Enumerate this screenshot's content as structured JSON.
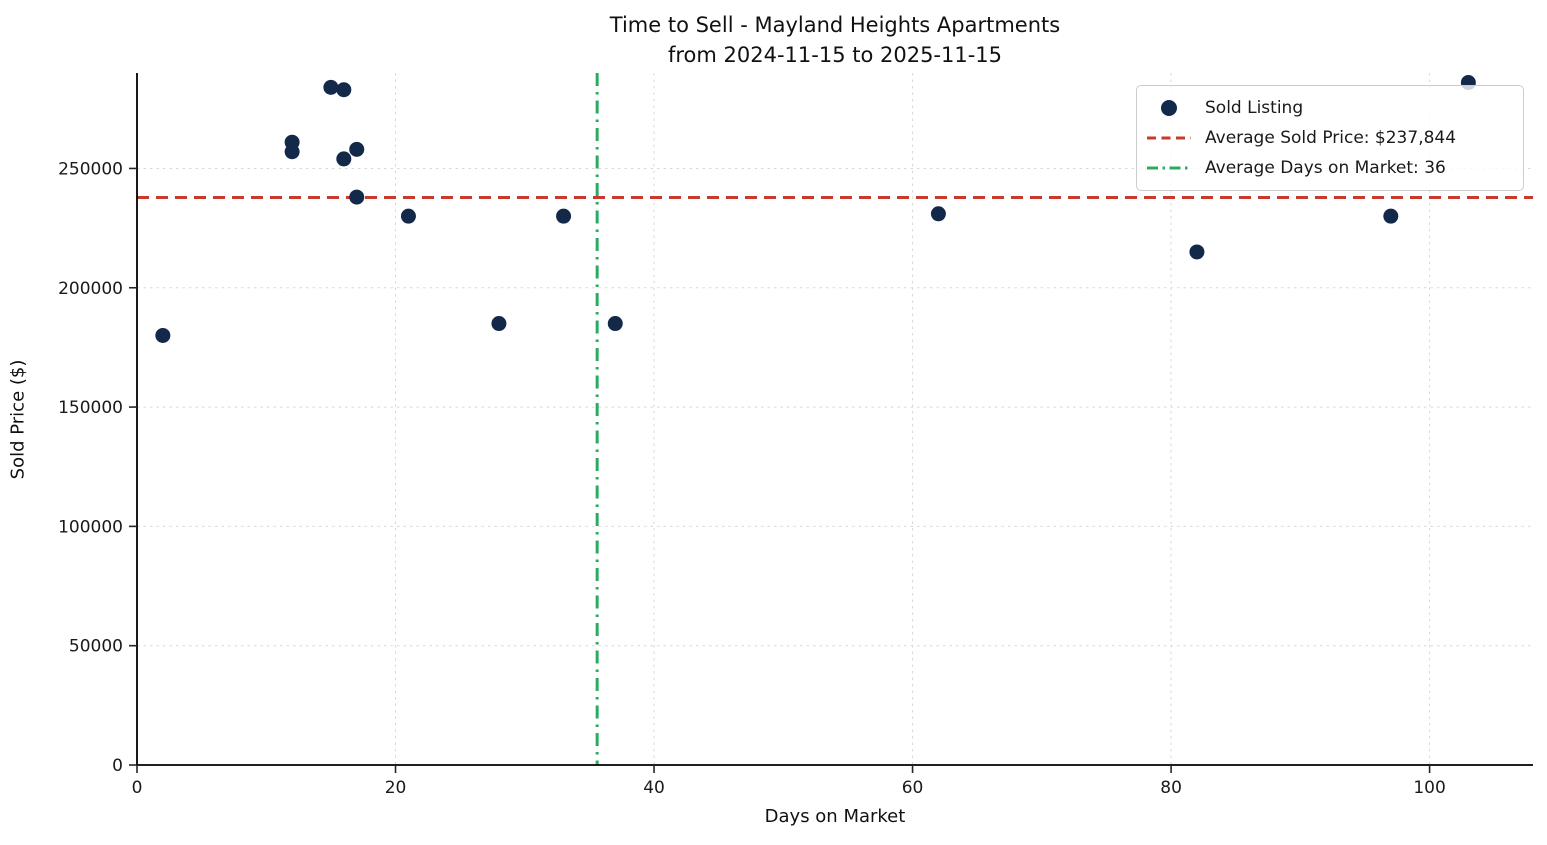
{
  "title": {
    "line1": "Time to Sell - Mayland Heights Apartments",
    "line2": "from 2024-11-15 to 2025-11-15"
  },
  "legend": {
    "sold_listing_label": "Sold Listing",
    "avg_price_label": "Average Sold Price: $237,844",
    "avg_days_label": "Average Days on Market: 36"
  },
  "colors": {
    "point": "#13294a",
    "avg_price_line": "#c83a2c",
    "avg_days_line": "#2bab60",
    "grid": "#d8d8d8",
    "spine": "#000000",
    "tick": "#262626",
    "text": "#1a1a1a"
  },
  "chart_data": {
    "type": "scatter",
    "title": "Time to Sell - Mayland Heights Apartments",
    "subtitle": "from 2024-11-15 to 2025-11-15",
    "xlabel": "Days on Market",
    "ylabel": "Sold Price ($)",
    "xlim": [
      0,
      108
    ],
    "ylim": [
      0,
      290000
    ],
    "x_ticks": [
      0,
      20,
      40,
      60,
      80,
      100
    ],
    "y_ticks": [
      0,
      50000,
      100000,
      150000,
      200000,
      250000
    ],
    "grid": true,
    "legend_position": "upper right",
    "series": [
      {
        "name": "Sold Listing",
        "points": [
          [
            2,
            180000
          ],
          [
            12,
            261000
          ],
          [
            12,
            257000
          ],
          [
            15,
            284000
          ],
          [
            16,
            283000
          ],
          [
            16,
            254000
          ],
          [
            17,
            258000
          ],
          [
            17,
            238000
          ],
          [
            21,
            230000
          ],
          [
            28,
            185000
          ],
          [
            33,
            230000
          ],
          [
            37,
            185000
          ],
          [
            62,
            231000
          ],
          [
            82,
            215000
          ],
          [
            97,
            230000
          ],
          [
            103,
            286000
          ]
        ]
      }
    ],
    "reference_lines": {
      "avg_sold_price": {
        "value": 237844,
        "orientation": "horizontal",
        "style": "dashed",
        "label": "Average Sold Price: $237,844"
      },
      "avg_days_on_market": {
        "value": 35.6,
        "display_value": 36,
        "orientation": "vertical",
        "style": "dashdot",
        "label": "Average Days on Market: 36"
      }
    }
  }
}
